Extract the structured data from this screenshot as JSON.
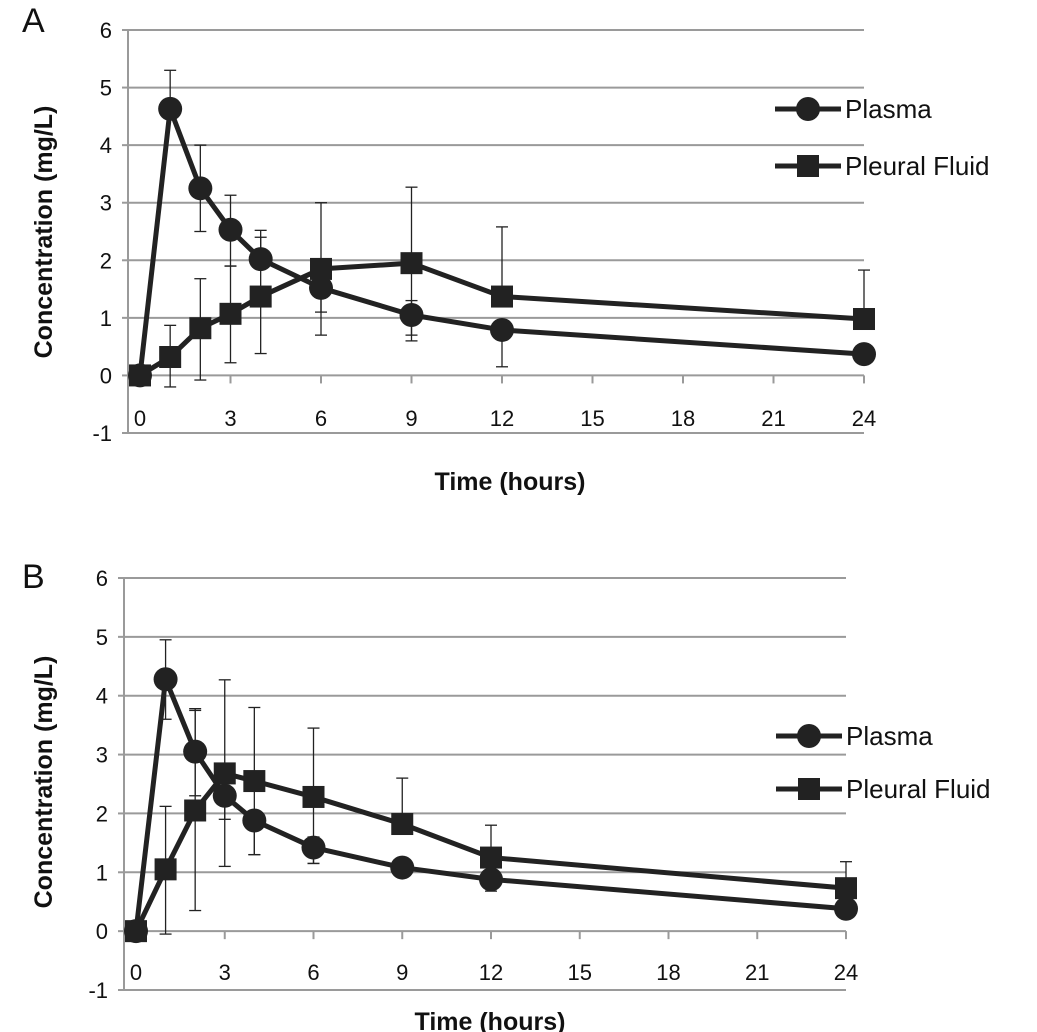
{
  "chart_data": [
    {
      "type": "line",
      "panel_label": "A",
      "xlabel": "Time (hours)",
      "ylabel": "Concentration (mg/L)",
      "x_ticks": [
        "0",
        "3",
        "6",
        "9",
        "12",
        "15",
        "18",
        "21",
        "24"
      ],
      "y_ticks": [
        "-1",
        "0",
        "1",
        "2",
        "3",
        "4",
        "5",
        "6"
      ],
      "xlim": [
        0,
        24
      ],
      "ylim": [
        -1,
        6
      ],
      "grid": "horizontal",
      "legend_position": "top-right",
      "series": [
        {
          "name": "Plasma",
          "marker": "circle",
          "x": [
            0,
            1,
            2,
            3,
            4,
            6,
            9,
            12,
            24
          ],
          "y": [
            0,
            4.63,
            3.25,
            2.53,
            2.02,
            1.52,
            1.05,
            0.79,
            0.37
          ],
          "err_upper": [
            0,
            5.3,
            4.0,
            3.13,
            2.52,
            0,
            1.3,
            0,
            0
          ],
          "err_lower": [
            0,
            0,
            2.5,
            1.9,
            0,
            1.1,
            0.6,
            0.15,
            0
          ]
        },
        {
          "name": "Pleural Fluid",
          "marker": "square",
          "x": [
            0,
            1,
            2,
            3,
            4,
            6,
            9,
            12,
            24
          ],
          "y": [
            0,
            0.32,
            0.82,
            1.07,
            1.37,
            1.85,
            1.95,
            1.37,
            0.98
          ],
          "err_upper": [
            0,
            0.87,
            1.68,
            1.9,
            2.4,
            3.0,
            3.27,
            2.58,
            1.83
          ],
          "err_lower": [
            0,
            -0.2,
            -0.08,
            0.22,
            0.38,
            0.7,
            0.7,
            0,
            0
          ]
        }
      ]
    },
    {
      "type": "line",
      "panel_label": "B",
      "xlabel": "Time (hours)",
      "ylabel": "Concentration (mg/L)",
      "x_ticks": [
        "0",
        "3",
        "6",
        "9",
        "12",
        "15",
        "18",
        "21",
        "24"
      ],
      "y_ticks": [
        "-1",
        "0",
        "1",
        "2",
        "3",
        "4",
        "5",
        "6"
      ],
      "xlim": [
        0,
        24
      ],
      "ylim": [
        -1,
        6
      ],
      "grid": "horizontal",
      "legend_position": "right",
      "series": [
        {
          "name": "Plasma",
          "marker": "circle",
          "x": [
            0,
            1,
            2,
            3,
            4,
            6,
            9,
            12,
            24
          ],
          "y": [
            0,
            4.28,
            3.05,
            2.3,
            1.88,
            1.42,
            1.08,
            0.88,
            0.38
          ],
          "err_upper": [
            0,
            4.95,
            3.78,
            2.85,
            2.0,
            1.6,
            1.15,
            0.95,
            0
          ],
          "err_lower": [
            0,
            3.6,
            2.3,
            1.9,
            1.3,
            1.15,
            0,
            0.68,
            0
          ]
        },
        {
          "name": "Pleural Fluid",
          "marker": "square",
          "x": [
            0,
            1,
            2,
            3,
            4,
            6,
            9,
            12,
            24
          ],
          "y": [
            0,
            1.05,
            2.05,
            2.68,
            2.55,
            2.28,
            1.82,
            1.25,
            0.73
          ],
          "err_upper": [
            0,
            2.12,
            3.75,
            4.27,
            3.8,
            3.45,
            2.6,
            1.8,
            1.18
          ],
          "err_lower": [
            0,
            -0.05,
            0.35,
            1.1,
            1.3,
            1.15,
            0,
            0,
            0
          ]
        }
      ]
    }
  ]
}
